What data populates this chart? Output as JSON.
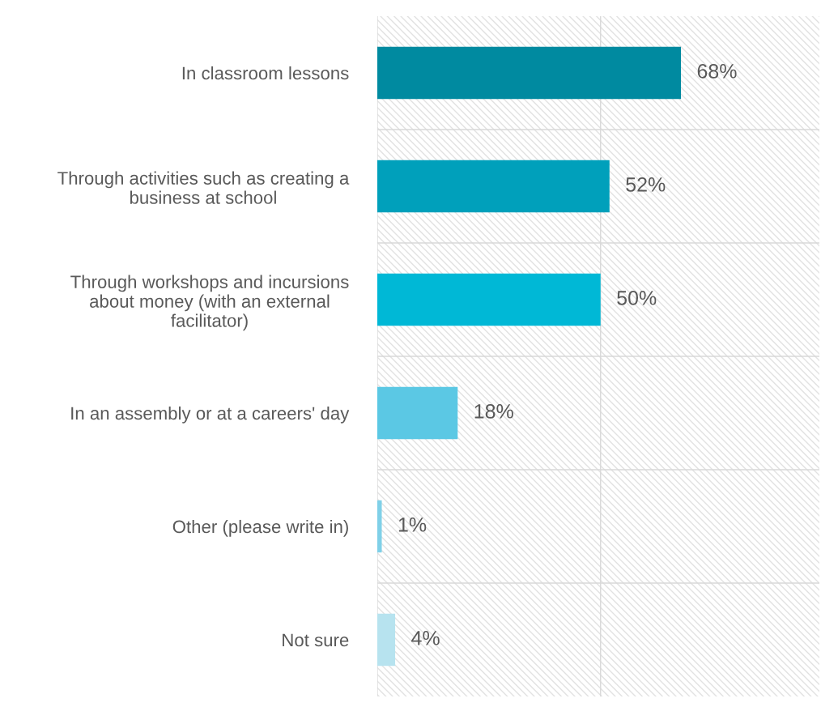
{
  "chart_data": {
    "type": "bar",
    "orientation": "horizontal",
    "categories": [
      "In classroom lessons",
      "Through activities such as creating a\nbusiness at school",
      "Through workshops and incursions\nabout money (with an external\nfacilitator)",
      "In an assembly or at a careers' day",
      "Other (please write in)",
      "Not sure"
    ],
    "values": [
      68,
      52,
      50,
      18,
      1,
      4
    ],
    "colors": [
      "#008aa0",
      "#00a0bb",
      "#00b8d6",
      "#5bc8e4",
      "#7fd0e8",
      "#b7e3ef"
    ],
    "value_labels": [
      "68%",
      "52%",
      "50%",
      "18%",
      "1%",
      "4%"
    ],
    "xlim": [
      0,
      99
    ],
    "xticks": [
      {
        "value": 0,
        "label": null
      },
      {
        "value": 50,
        "label": null
      }
    ],
    "tick_labels": "y",
    "grid": true
  }
}
